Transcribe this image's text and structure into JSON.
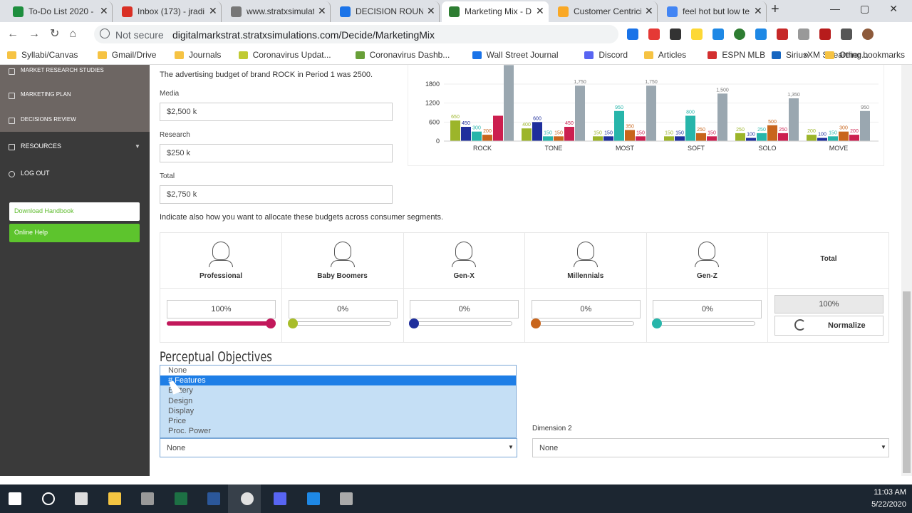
{
  "browser": {
    "tabs": [
      "To-Do List 2020 - (",
      "Inbox (173) - jradi",
      "www.stratxsimulati",
      "DECISION ROUND",
      "Marketing Mix - D",
      "Customer Centrici",
      "feel hot but low te"
    ],
    "active_tab": 4,
    "security": "Not secure",
    "url": "digitalmarkstrat.stratxsimulations.com/Decide/MarketingMix",
    "bookmarks": [
      "Syllabi/Canvas",
      "Gmail/Drive",
      "Journals",
      "Coronavirus Updat...",
      "Coronavirus Dashb...",
      "Wall Street Journal",
      "Discord",
      "Articles",
      "ESPN MLB",
      "SiriusXM Streaming..."
    ],
    "other_bookmarks": "Other bookmarks"
  },
  "sidebar": {
    "items": [
      "MARKET RESEARCH STUDIES",
      "MARKETING PLAN",
      "DECISIONS REVIEW",
      "RESOURCES",
      "LOG OUT"
    ],
    "handbook": "Download Handbook",
    "help": "Online Help"
  },
  "budget": {
    "intro": "The advertising budget of brand ROCK in Period 1 was 2500.",
    "fields": [
      {
        "label": "Media",
        "value": "$2,500 k"
      },
      {
        "label": "Research",
        "value": "$250 k"
      },
      {
        "label": "Total",
        "value": "$2,750 k"
      }
    ]
  },
  "chart": {
    "type": "bar",
    "categories": [
      "ROCK",
      "TONE",
      "MOST",
      "SOFT",
      "SOLO",
      "MOVE"
    ],
    "ylim": [
      0,
      2250
    ],
    "yticks": [
      0,
      600,
      1200,
      1800
    ],
    "series": [
      {
        "color": "#9cb52a",
        "values": [
          650,
          400,
          150,
          150,
          250,
          200
        ],
        "value_labels": [
          650,
          400,
          150,
          150,
          250,
          200
        ]
      },
      {
        "color": "#1f2f9c",
        "values": [
          450,
          600,
          150,
          150,
          100,
          100
        ],
        "value_labels": [
          450,
          600,
          150,
          150,
          100,
          100
        ]
      },
      {
        "color": "#27b5aa",
        "values": [
          300,
          150,
          950,
          800,
          250,
          150
        ],
        "value_labels": [
          300,
          150,
          950,
          800,
          250,
          150
        ]
      },
      {
        "color": "#c8651c",
        "values": [
          200,
          150,
          350,
          250,
          500,
          300
        ],
        "value_labels": [
          200,
          150,
          350,
          250,
          500,
          300
        ]
      },
      {
        "color": "#cc1f4f",
        "values": [
          800,
          450,
          150,
          150,
          250,
          200
        ],
        "value_labels": [
          null,
          450,
          150,
          150,
          250,
          200
        ]
      },
      {
        "color": "#9aa7b0",
        "values": [
          2400,
          1750,
          1750,
          1500,
          1350,
          950
        ],
        "value_labels": [
          null,
          "1,750",
          "1,750",
          "1,500",
          "1,350",
          950
        ]
      }
    ]
  },
  "segments": {
    "prompt": "Indicate also how you want to allocate these budgets across consumer segments.",
    "items": [
      {
        "name": "Professional",
        "value": "100%",
        "color": "#c2185b"
      },
      {
        "name": "Baby Boomers",
        "value": "0%",
        "color": "#a8bd2a"
      },
      {
        "name": "Gen-X",
        "value": "0%",
        "color": "#1f2f9c"
      },
      {
        "name": "Millennials",
        "value": "0%",
        "color": "#c8651c"
      },
      {
        "name": "Gen-Z",
        "value": "0%",
        "color": "#27b5aa"
      }
    ],
    "total_label": "Total",
    "total_value": "100%",
    "normalize": "Normalize"
  },
  "objectives": {
    "title": "Perceptual Objectives",
    "options": [
      "None",
      "# Features",
      "Battery",
      "Design",
      "Display",
      "Price",
      "Proc. Power"
    ],
    "highlighted": 1,
    "selected": "None",
    "dimension2_label": "Dimension 2",
    "dimension2_value": "None"
  },
  "taskbar": {
    "time": "11:03 AM",
    "date": "5/22/2020"
  }
}
